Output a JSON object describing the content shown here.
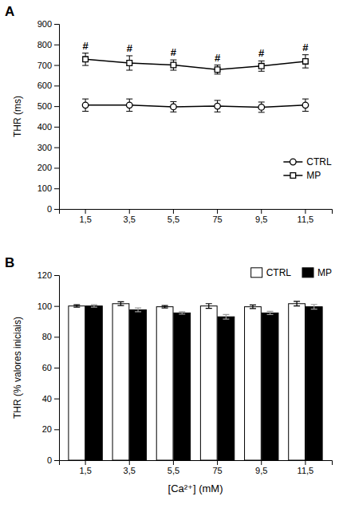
{
  "chart_data": [
    {
      "type": "line",
      "title": "A",
      "ylabel": "THR (ms)",
      "categories": [
        "1,5",
        "3,5",
        "5,5",
        "75",
        "9,5",
        "11,5"
      ],
      "series": [
        {
          "name": "CTRL",
          "color": "black",
          "marker": "circle",
          "values": [
            505,
            505,
            497,
            500,
            495,
            505
          ],
          "errors": [
            30,
            30,
            25,
            28,
            25,
            30
          ]
        },
        {
          "name": "MP",
          "color": "black",
          "marker": "square",
          "values": [
            728,
            710,
            700,
            678,
            695,
            718
          ],
          "errors": [
            30,
            35,
            25,
            22,
            25,
            32
          ],
          "annotations": [
            "#",
            "#",
            "#",
            "#",
            "#",
            "#"
          ]
        }
      ],
      "ylim": [
        0,
        900
      ],
      "yticks": [
        0,
        100,
        200,
        300,
        400,
        500,
        600,
        700,
        800,
        900
      ],
      "grid": false,
      "legend": "lower-right"
    },
    {
      "type": "bar",
      "title": "B",
      "ylabel": "THR (% valores iniciais)",
      "xlabel": "[Ca²⁺] (mM)",
      "categories": [
        "1,5",
        "3,5",
        "5,5",
        "75",
        "9,5",
        "11,5"
      ],
      "series": [
        {
          "name": "CTRL",
          "color": "white",
          "values": [
            100.0,
            101.5,
            99.5,
            100.0,
            99.5,
            101.5
          ],
          "errors": [
            0.8,
            1.2,
            0.8,
            1.5,
            1.2,
            1.5
          ]
        },
        {
          "name": "MP",
          "color": "black",
          "values": [
            100.0,
            97.5,
            95.5,
            93.0,
            95.5,
            99.5
          ],
          "errors": [
            0.8,
            1.2,
            0.8,
            1.5,
            1.0,
            1.5
          ]
        }
      ],
      "ylim": [
        0,
        120
      ],
      "yticks": [
        0,
        20,
        40,
        60,
        80,
        100,
        120
      ],
      "grid": false,
      "legend": "upper-right"
    }
  ]
}
